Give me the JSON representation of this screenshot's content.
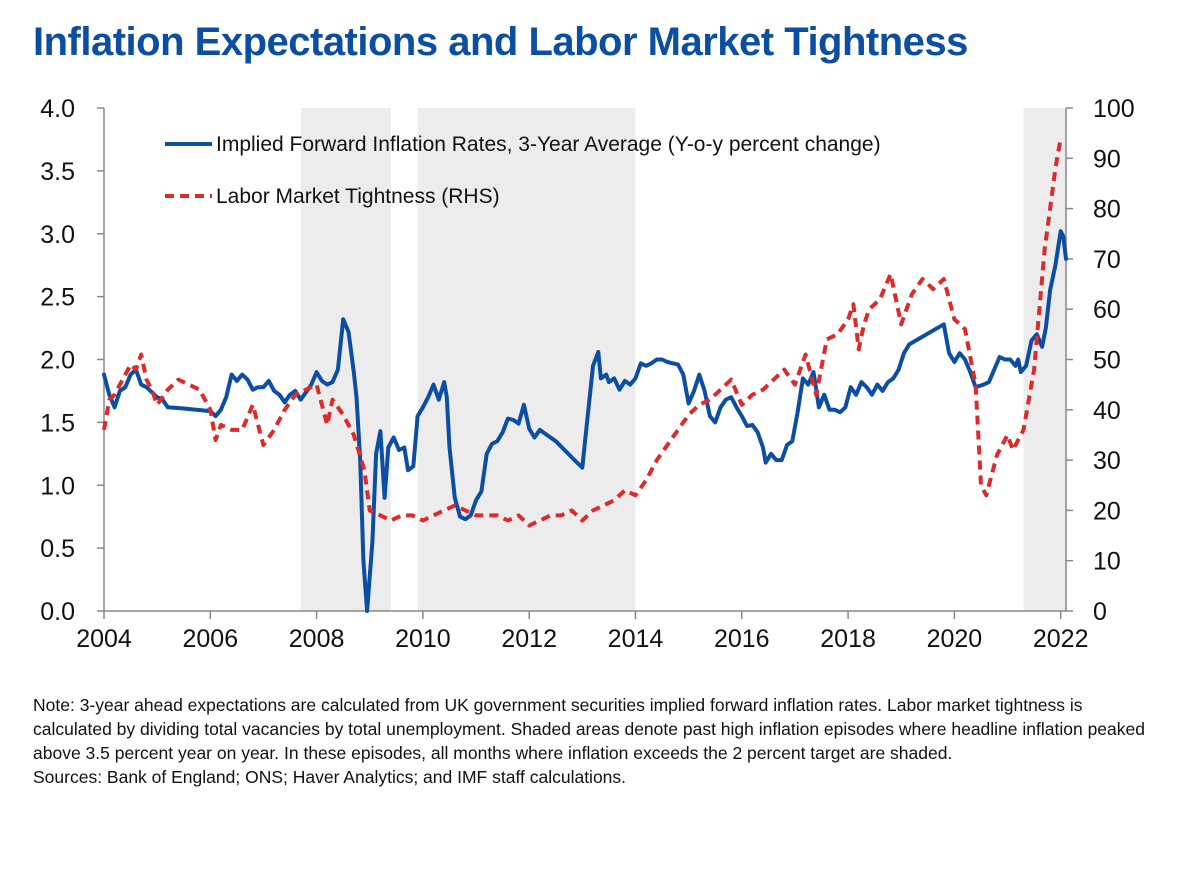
{
  "chart_data": {
    "type": "line",
    "title": "Inflation Expectations and Labor Market Tightness",
    "x_range": [
      2004.0,
      2022.1
    ],
    "x_ticks": [
      2004,
      2006,
      2008,
      2010,
      2012,
      2014,
      2016,
      2018,
      2020,
      2022
    ],
    "y_left": {
      "range": [
        0,
        4.0
      ],
      "ticks": [
        "0.0",
        "0.5",
        "1.0",
        "1.5",
        "2.0",
        "2.5",
        "3.0",
        "3.5",
        "4.0"
      ]
    },
    "y_right": {
      "range": [
        0,
        100
      ],
      "ticks": [
        "0",
        "10",
        "20",
        "30",
        "40",
        "50",
        "60",
        "70",
        "80",
        "90",
        "100"
      ]
    },
    "shaded_periods": [
      [
        2007.7,
        2009.4
      ],
      [
        2009.9,
        2014.0
      ],
      [
        2021.3,
        2022.1
      ]
    ],
    "grid": false,
    "legend_position": "top-center",
    "series": [
      {
        "name": "Implied Forward Inflation Rates, 3-Year Average (Y-o-y percent change)",
        "axis": "left",
        "color": "#0b4ea2",
        "style": "solid",
        "points": [
          [
            2004.0,
            1.88
          ],
          [
            2004.1,
            1.72
          ],
          [
            2004.2,
            1.62
          ],
          [
            2004.3,
            1.75
          ],
          [
            2004.4,
            1.78
          ],
          [
            2004.5,
            1.88
          ],
          [
            2004.6,
            1.92
          ],
          [
            2004.7,
            1.8
          ],
          [
            2004.8,
            1.78
          ],
          [
            2004.9,
            1.74
          ],
          [
            2005.0,
            1.7
          ],
          [
            2005.1,
            1.68
          ],
          [
            2005.2,
            1.62
          ],
          [
            2005.5,
            1.61
          ],
          [
            2006.0,
            1.59
          ],
          [
            2006.1,
            1.55
          ],
          [
            2006.2,
            1.6
          ],
          [
            2006.3,
            1.7
          ],
          [
            2006.4,
            1.88
          ],
          [
            2006.5,
            1.83
          ],
          [
            2006.6,
            1.88
          ],
          [
            2006.7,
            1.84
          ],
          [
            2006.8,
            1.76
          ],
          [
            2006.9,
            1.78
          ],
          [
            2007.0,
            1.78
          ],
          [
            2007.1,
            1.83
          ],
          [
            2007.2,
            1.75
          ],
          [
            2007.3,
            1.72
          ],
          [
            2007.4,
            1.66
          ],
          [
            2007.5,
            1.72
          ],
          [
            2007.6,
            1.75
          ],
          [
            2007.7,
            1.68
          ],
          [
            2007.8,
            1.74
          ],
          [
            2007.9,
            1.8
          ],
          [
            2008.0,
            1.9
          ],
          [
            2008.1,
            1.83
          ],
          [
            2008.2,
            1.8
          ],
          [
            2008.3,
            1.82
          ],
          [
            2008.4,
            1.92
          ],
          [
            2008.5,
            2.32
          ],
          [
            2008.6,
            2.22
          ],
          [
            2008.7,
            1.9
          ],
          [
            2008.75,
            1.7
          ],
          [
            2008.82,
            1.2
          ],
          [
            2008.88,
            0.4
          ],
          [
            2008.95,
            0.0
          ],
          [
            2009.05,
            0.55
          ],
          [
            2009.12,
            1.25
          ],
          [
            2009.2,
            1.43
          ],
          [
            2009.28,
            0.9
          ],
          [
            2009.35,
            1.3
          ],
          [
            2009.45,
            1.38
          ],
          [
            2009.55,
            1.28
          ],
          [
            2009.65,
            1.3
          ],
          [
            2009.72,
            1.12
          ],
          [
            2009.82,
            1.15
          ],
          [
            2009.9,
            1.55
          ],
          [
            2010.0,
            1.62
          ],
          [
            2010.1,
            1.7
          ],
          [
            2010.2,
            1.8
          ],
          [
            2010.3,
            1.68
          ],
          [
            2010.4,
            1.82
          ],
          [
            2010.45,
            1.7
          ],
          [
            2010.5,
            1.3
          ],
          [
            2010.6,
            0.9
          ],
          [
            2010.7,
            0.75
          ],
          [
            2010.8,
            0.73
          ],
          [
            2010.9,
            0.76
          ],
          [
            2011.0,
            0.88
          ],
          [
            2011.1,
            0.95
          ],
          [
            2011.2,
            1.25
          ],
          [
            2011.3,
            1.33
          ],
          [
            2011.4,
            1.35
          ],
          [
            2011.5,
            1.42
          ],
          [
            2011.6,
            1.53
          ],
          [
            2011.7,
            1.52
          ],
          [
            2011.8,
            1.49
          ],
          [
            2011.9,
            1.64
          ],
          [
            2012.0,
            1.45
          ],
          [
            2012.1,
            1.38
          ],
          [
            2012.2,
            1.44
          ],
          [
            2012.5,
            1.35
          ],
          [
            2012.9,
            1.18
          ],
          [
            2013.0,
            1.14
          ],
          [
            2013.1,
            1.55
          ],
          [
            2013.2,
            1.95
          ],
          [
            2013.3,
            2.06
          ],
          [
            2013.35,
            1.85
          ],
          [
            2013.45,
            1.88
          ],
          [
            2013.5,
            1.82
          ],
          [
            2013.6,
            1.85
          ],
          [
            2013.7,
            1.76
          ],
          [
            2013.8,
            1.83
          ],
          [
            2013.9,
            1.8
          ],
          [
            2014.0,
            1.85
          ],
          [
            2014.1,
            1.97
          ],
          [
            2014.2,
            1.95
          ],
          [
            2014.3,
            1.97
          ],
          [
            2014.4,
            2.0
          ],
          [
            2014.5,
            2.0
          ],
          [
            2014.6,
            1.98
          ],
          [
            2014.7,
            1.97
          ],
          [
            2014.8,
            1.96
          ],
          [
            2014.9,
            1.88
          ],
          [
            2015.0,
            1.65
          ],
          [
            2015.1,
            1.75
          ],
          [
            2015.2,
            1.88
          ],
          [
            2015.3,
            1.75
          ],
          [
            2015.4,
            1.55
          ],
          [
            2015.5,
            1.5
          ],
          [
            2015.6,
            1.62
          ],
          [
            2015.7,
            1.68
          ],
          [
            2015.8,
            1.7
          ],
          [
            2015.9,
            1.62
          ],
          [
            2016.0,
            1.55
          ],
          [
            2016.1,
            1.47
          ],
          [
            2016.2,
            1.48
          ],
          [
            2016.3,
            1.42
          ],
          [
            2016.4,
            1.3
          ],
          [
            2016.45,
            1.18
          ],
          [
            2016.55,
            1.25
          ],
          [
            2016.65,
            1.2
          ],
          [
            2016.75,
            1.2
          ],
          [
            2016.85,
            1.32
          ],
          [
            2016.95,
            1.35
          ],
          [
            2017.05,
            1.58
          ],
          [
            2017.15,
            1.85
          ],
          [
            2017.25,
            1.8
          ],
          [
            2017.35,
            1.9
          ],
          [
            2017.45,
            1.62
          ],
          [
            2017.55,
            1.72
          ],
          [
            2017.65,
            1.6
          ],
          [
            2017.75,
            1.6
          ],
          [
            2017.85,
            1.58
          ],
          [
            2017.95,
            1.62
          ],
          [
            2018.05,
            1.78
          ],
          [
            2018.15,
            1.72
          ],
          [
            2018.25,
            1.82
          ],
          [
            2018.35,
            1.78
          ],
          [
            2018.45,
            1.72
          ],
          [
            2018.55,
            1.8
          ],
          [
            2018.65,
            1.75
          ],
          [
            2018.75,
            1.82
          ],
          [
            2018.85,
            1.85
          ],
          [
            2018.95,
            1.92
          ],
          [
            2019.05,
            2.05
          ],
          [
            2019.15,
            2.12
          ],
          [
            2019.8,
            2.28
          ],
          [
            2019.9,
            2.05
          ],
          [
            2020.0,
            1.98
          ],
          [
            2020.1,
            2.05
          ],
          [
            2020.2,
            2.0
          ],
          [
            2020.3,
            1.9
          ],
          [
            2020.4,
            1.78
          ],
          [
            2020.55,
            1.8
          ],
          [
            2020.65,
            1.82
          ],
          [
            2020.75,
            1.92
          ],
          [
            2020.85,
            2.02
          ],
          [
            2020.95,
            2.0
          ],
          [
            2021.05,
            2.0
          ],
          [
            2021.15,
            1.95
          ],
          [
            2021.2,
            2.0
          ],
          [
            2021.25,
            1.9
          ],
          [
            2021.35,
            1.95
          ],
          [
            2021.45,
            2.15
          ],
          [
            2021.55,
            2.2
          ],
          [
            2021.65,
            2.1
          ],
          [
            2021.72,
            2.25
          ],
          [
            2021.8,
            2.55
          ],
          [
            2021.9,
            2.75
          ],
          [
            2022.0,
            3.02
          ],
          [
            2022.05,
            2.98
          ],
          [
            2022.1,
            2.8
          ]
        ]
      },
      {
        "name": "Labor Market Tightness (RHS)",
        "axis": "right",
        "color": "#dd2a2a",
        "style": "dashed",
        "points": [
          [
            2004.0,
            36
          ],
          [
            2004.1,
            42
          ],
          [
            2004.2,
            43
          ],
          [
            2004.3,
            45
          ],
          [
            2004.4,
            47
          ],
          [
            2004.5,
            49
          ],
          [
            2004.6,
            48
          ],
          [
            2004.7,
            51
          ],
          [
            2004.8,
            46
          ],
          [
            2004.9,
            44
          ],
          [
            2005.0,
            41
          ],
          [
            2005.2,
            44
          ],
          [
            2005.4,
            46
          ],
          [
            2005.6,
            45
          ],
          [
            2005.8,
            44
          ],
          [
            2006.0,
            40
          ],
          [
            2006.1,
            34
          ],
          [
            2006.2,
            37
          ],
          [
            2006.4,
            36
          ],
          [
            2006.6,
            36
          ],
          [
            2006.8,
            41
          ],
          [
            2007.0,
            33
          ],
          [
            2007.2,
            36
          ],
          [
            2007.4,
            40
          ],
          [
            2007.6,
            43
          ],
          [
            2007.8,
            44
          ],
          [
            2008.0,
            45
          ],
          [
            2008.1,
            41
          ],
          [
            2008.2,
            37
          ],
          [
            2008.3,
            42
          ],
          [
            2008.5,
            39
          ],
          [
            2008.7,
            35
          ],
          [
            2008.9,
            28
          ],
          [
            2009.0,
            20
          ],
          [
            2009.2,
            19
          ],
          [
            2009.4,
            18
          ],
          [
            2009.6,
            19
          ],
          [
            2009.8,
            19
          ],
          [
            2010.0,
            18
          ],
          [
            2010.2,
            19
          ],
          [
            2010.4,
            20
          ],
          [
            2010.6,
            21
          ],
          [
            2010.8,
            20
          ],
          [
            2011.0,
            19
          ],
          [
            2011.2,
            19
          ],
          [
            2011.4,
            19
          ],
          [
            2011.6,
            18
          ],
          [
            2011.8,
            19
          ],
          [
            2012.0,
            17
          ],
          [
            2012.2,
            18
          ],
          [
            2012.4,
            19
          ],
          [
            2012.6,
            19
          ],
          [
            2012.8,
            20
          ],
          [
            2013.0,
            18
          ],
          [
            2013.2,
            20
          ],
          [
            2013.4,
            21
          ],
          [
            2013.6,
            22
          ],
          [
            2013.8,
            24
          ],
          [
            2014.0,
            23
          ],
          [
            2014.2,
            26
          ],
          [
            2014.4,
            30
          ],
          [
            2014.6,
            33
          ],
          [
            2014.8,
            36
          ],
          [
            2015.0,
            39
          ],
          [
            2015.2,
            41
          ],
          [
            2015.4,
            42
          ],
          [
            2015.6,
            44
          ],
          [
            2015.8,
            46
          ],
          [
            2016.0,
            41
          ],
          [
            2016.2,
            43
          ],
          [
            2016.4,
            44
          ],
          [
            2016.6,
            46
          ],
          [
            2016.8,
            48
          ],
          [
            2017.0,
            45
          ],
          [
            2017.2,
            51
          ],
          [
            2017.4,
            43
          ],
          [
            2017.6,
            54
          ],
          [
            2017.8,
            55
          ],
          [
            2018.0,
            58
          ],
          [
            2018.1,
            61
          ],
          [
            2018.2,
            52
          ],
          [
            2018.3,
            57
          ],
          [
            2018.4,
            60
          ],
          [
            2018.6,
            62
          ],
          [
            2018.8,
            67
          ],
          [
            2019.0,
            57
          ],
          [
            2019.2,
            63
          ],
          [
            2019.4,
            66
          ],
          [
            2019.6,
            64
          ],
          [
            2019.8,
            66
          ],
          [
            2020.0,
            58
          ],
          [
            2020.2,
            56
          ],
          [
            2020.4,
            45
          ],
          [
            2020.5,
            25
          ],
          [
            2020.6,
            23
          ],
          [
            2020.8,
            31
          ],
          [
            2021.0,
            35
          ],
          [
            2021.1,
            32
          ],
          [
            2021.3,
            36
          ],
          [
            2021.5,
            48
          ],
          [
            2021.6,
            60
          ],
          [
            2021.7,
            72
          ],
          [
            2021.8,
            80
          ],
          [
            2021.9,
            88
          ],
          [
            2022.0,
            94
          ]
        ]
      }
    ]
  },
  "notes": {
    "note": "Note: 3-year ahead expectations are calculated from UK government securities implied forward inflation rates. Labor market tightness is calculated by dividing total vacancies by total unemployment. Shaded areas denote past high inflation episodes where headline inflation peaked above 3.5 percent year on year. In these episodes, all months where inflation exceeds the 2 percent target are shaded.",
    "sources": "Sources: Bank of England; ONS; Haver Analytics; and IMF staff calculations."
  }
}
